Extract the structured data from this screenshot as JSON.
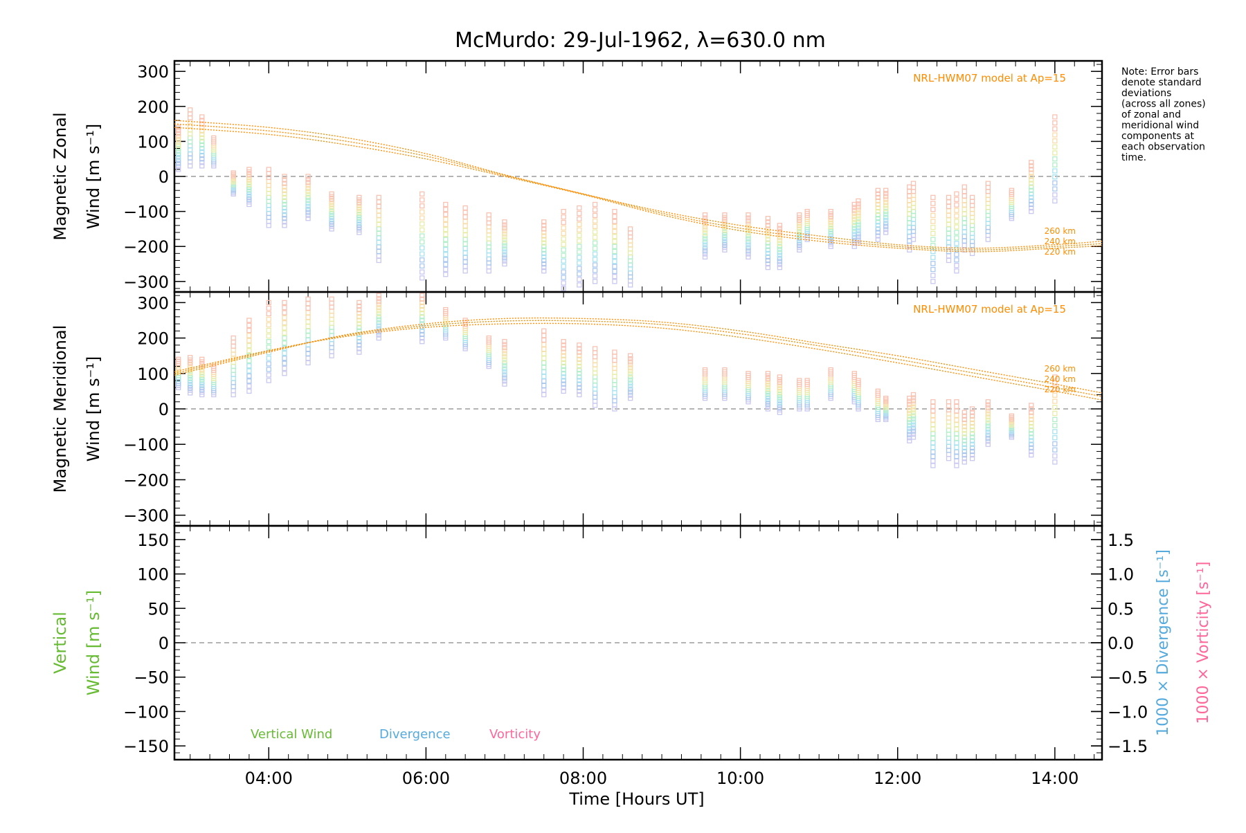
{
  "title": "McMurdo: 29-Jul-1962, λ=630.0 nm",
  "note_lines": [
    "Note: Error bars",
    "denote standard",
    "deviations",
    "(across all zones)",
    "of zonal and",
    "meridional wind",
    "components at",
    "each observation",
    "time."
  ],
  "xlabel": "Time [Hours UT]",
  "colors": {
    "model": "#ff8c00",
    "zero_line": "#888888",
    "axis": "#000000",
    "vertical": "#66bb33",
    "divergence": "#55aadd",
    "vorticity": "#ff6699"
  },
  "chart_data": [
    {
      "type": "scatter",
      "panel": "zonal",
      "ylabel_line1": "Magnetic Zonal",
      "ylabel_line2": "Wind [m s⁻¹]",
      "ylim": [
        -330,
        330
      ],
      "yticks": [
        "300",
        "200",
        "100",
        "0",
        "−100",
        "−200",
        "−300"
      ],
      "ytick_values": [
        300,
        200,
        100,
        0,
        -100,
        -200,
        -300
      ],
      "xlim": [
        2.8,
        14.6
      ],
      "xticks": [
        "04:00",
        "06:00",
        "08:00",
        "10:00",
        "12:00",
        "14:00"
      ],
      "xtick_values": [
        4,
        6,
        8,
        10,
        12,
        14
      ],
      "model_label": "NRL-HWM07 model at Ap=15",
      "model_altitude_labels": [
        "260 km",
        "240 km",
        "220 km"
      ],
      "model_series": [
        {
          "name": "260 km",
          "x": [
            2.8,
            4,
            5,
            6,
            7,
            8,
            9,
            10,
            11,
            12,
            13,
            14,
            14.6
          ],
          "y": [
            160,
            140,
            110,
            65,
            5,
            -50,
            -100,
            -140,
            -170,
            -195,
            -205,
            -195,
            -185
          ]
        },
        {
          "name": "240 km",
          "x": [
            2.8,
            4,
            5,
            6,
            7,
            8,
            9,
            10,
            11,
            12,
            13,
            14,
            14.6
          ],
          "y": [
            150,
            130,
            100,
            58,
            3,
            -50,
            -105,
            -148,
            -178,
            -200,
            -210,
            -200,
            -192
          ]
        },
        {
          "name": "220 km",
          "x": [
            2.8,
            4,
            5,
            6,
            7,
            8,
            9,
            10,
            11,
            12,
            13,
            14,
            14.6
          ],
          "y": [
            140,
            120,
            90,
            50,
            0,
            -52,
            -110,
            -155,
            -185,
            -205,
            -215,
            -205,
            -198
          ]
        }
      ],
      "observations": {
        "x": [
          2.85,
          3.0,
          3.15,
          3.3,
          3.55,
          3.75,
          4.0,
          4.2,
          4.5,
          4.8,
          5.15,
          5.4,
          5.95,
          6.25,
          6.5,
          6.8,
          7.0,
          7.5,
          7.75,
          7.95,
          8.15,
          8.4,
          8.6,
          9.55,
          9.8,
          10.1,
          10.35,
          10.5,
          10.75,
          10.85,
          11.15,
          11.45,
          11.5,
          11.75,
          11.85,
          12.15,
          12.2,
          12.45,
          12.65,
          12.75,
          12.85,
          12.95,
          13.15,
          13.45,
          13.7,
          14.0
        ],
        "center": [
          80,
          110,
          100,
          70,
          -20,
          -30,
          -60,
          -70,
          -60,
          -100,
          -110,
          -150,
          -170,
          -180,
          -180,
          -190,
          -190,
          -200,
          -210,
          -200,
          -190,
          -200,
          -230,
          -170,
          -160,
          -170,
          -190,
          -200,
          -160,
          -140,
          -150,
          -140,
          -130,
          -110,
          -100,
          -120,
          -100,
          -180,
          -150,
          -160,
          -120,
          -140,
          -100,
          -80,
          -30,
          50
        ],
        "half_range": [
          60,
          80,
          70,
          40,
          30,
          50,
          80,
          70,
          60,
          50,
          50,
          90,
          120,
          100,
          90,
          80,
          60,
          70,
          110,
          110,
          110,
          100,
          80,
          60,
          50,
          60,
          70,
          60,
          50,
          40,
          50,
          60,
          60,
          70,
          60,
          90,
          80,
          120,
          90,
          110,
          90,
          80,
          80,
          40,
          70,
          120
        ]
      }
    },
    {
      "type": "scatter",
      "panel": "meridional",
      "ylabel_line1": "Magnetic Meridional",
      "ylabel_line2": "Wind [m s⁻¹]",
      "ylim": [
        -330,
        330
      ],
      "yticks": [
        "300",
        "200",
        "100",
        "0",
        "−100",
        "−200",
        "−300"
      ],
      "ytick_values": [
        300,
        200,
        100,
        0,
        -100,
        -200,
        -300
      ],
      "xlim": [
        2.8,
        14.6
      ],
      "model_label": "NRL-HWM07 model at Ap=15",
      "model_altitude_labels": [
        "260 km",
        "240 km",
        "220 km"
      ],
      "model_series": [
        {
          "name": "260 km",
          "x": [
            2.8,
            4,
            5,
            6,
            7,
            8,
            9,
            10,
            11,
            12,
            13,
            14,
            14.6
          ],
          "y": [
            95,
            160,
            210,
            240,
            255,
            255,
            245,
            220,
            185,
            150,
            110,
            70,
            45
          ]
        },
        {
          "name": "240 km",
          "x": [
            2.8,
            4,
            5,
            6,
            7,
            8,
            9,
            10,
            11,
            12,
            13,
            14,
            14.6
          ],
          "y": [
            100,
            163,
            208,
            235,
            248,
            248,
            238,
            212,
            178,
            140,
            100,
            60,
            35
          ]
        },
        {
          "name": "220 km",
          "x": [
            2.8,
            4,
            5,
            6,
            7,
            8,
            9,
            10,
            11,
            12,
            13,
            14,
            14.6
          ],
          "y": [
            105,
            165,
            205,
            230,
            240,
            240,
            228,
            202,
            168,
            130,
            90,
            50,
            25
          ]
        }
      ],
      "observations": {
        "x": [
          2.85,
          3.0,
          3.15,
          3.3,
          3.55,
          3.75,
          4.0,
          4.2,
          4.5,
          4.8,
          5.15,
          5.4,
          5.95,
          6.25,
          6.5,
          6.8,
          7.0,
          7.5,
          7.75,
          7.95,
          8.15,
          8.4,
          8.6,
          9.55,
          9.8,
          10.1,
          10.35,
          10.5,
          10.75,
          10.85,
          11.15,
          11.45,
          11.5,
          11.75,
          11.85,
          12.15,
          12.2,
          12.45,
          12.65,
          12.75,
          12.85,
          12.95,
          13.15,
          13.45,
          13.7,
          14.0
        ],
        "center": [
          100,
          95,
          90,
          80,
          120,
          150,
          190,
          200,
          220,
          230,
          230,
          260,
          260,
          240,
          210,
          160,
          130,
          130,
          120,
          110,
          90,
          80,
          90,
          70,
          70,
          60,
          50,
          40,
          40,
          40,
          70,
          60,
          40,
          10,
          0,
          -30,
          -20,
          -70,
          -60,
          -70,
          -80,
          -70,
          -40,
          -50,
          -60,
          -30
        ],
        "half_range": [
          40,
          50,
          50,
          40,
          80,
          100,
          110,
          100,
          90,
          80,
          70,
          60,
          70,
          40,
          40,
          40,
          60,
          90,
          70,
          70,
          80,
          80,
          60,
          40,
          40,
          40,
          50,
          50,
          40,
          40,
          40,
          40,
          40,
          40,
          30,
          60,
          60,
          90,
          80,
          90,
          70,
          70,
          60,
          30,
          70,
          120
        ]
      }
    },
    {
      "type": "line",
      "panel": "vertical",
      "ylabel_line1": "Vertical",
      "ylabel_line2": "Wind [m s⁻¹]",
      "ylim": [
        -170,
        170
      ],
      "yticks": [
        "150",
        "100",
        "50",
        "0",
        "−50",
        "−100",
        "−150"
      ],
      "ytick_values": [
        150,
        100,
        50,
        0,
        -50,
        -100,
        -150
      ],
      "right_ylim": [
        -1.7,
        1.7
      ],
      "right_yticks": [
        "1.5",
        "1.0",
        "0.5",
        "0.0",
        "−0.5",
        "−1.0",
        "−1.5"
      ],
      "right_ytick_values": [
        1.5,
        1.0,
        0.5,
        0.0,
        -0.5,
        -1.0,
        -1.5
      ],
      "right_ylabel_divergence": "1000 × Divergence [s⁻¹]",
      "right_ylabel_vorticity": "1000 × Vorticity [s⁻¹]",
      "legend": [
        "Vertical Wind",
        "Divergence",
        "Vorticity"
      ],
      "series": []
    }
  ]
}
